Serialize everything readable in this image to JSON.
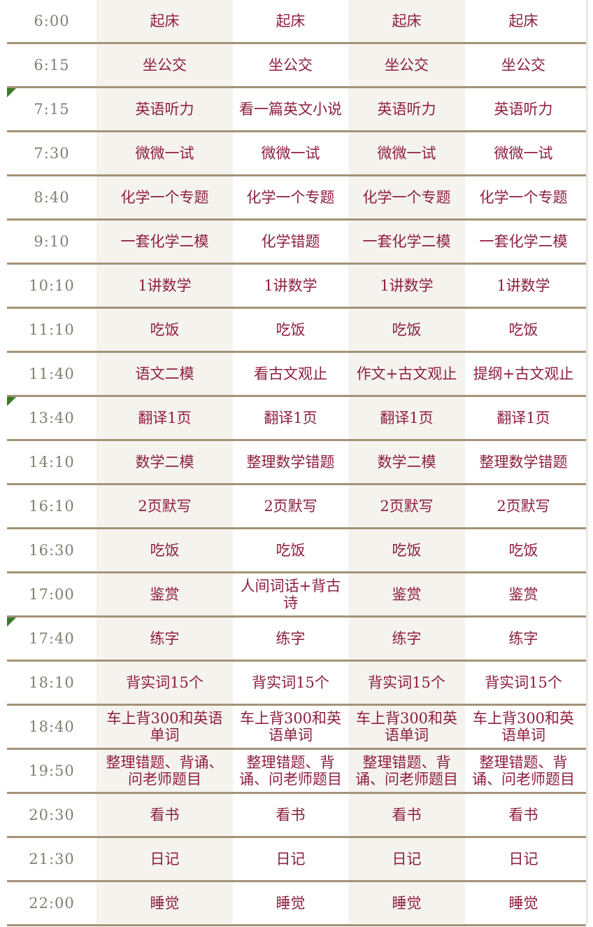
{
  "rows": [
    {
      "time": "6:00",
      "cells": [
        "起床",
        "起床",
        "起床",
        "起床"
      ],
      "flag": false
    },
    {
      "time": "6:15",
      "cells": [
        "坐公交",
        "坐公交",
        "坐公交",
        "坐公交"
      ],
      "flag": false
    },
    {
      "time": "7:15",
      "cells": [
        "英语听力",
        "看一篇英文小说",
        "英语听力",
        "英语听力"
      ],
      "flag": true
    },
    {
      "time": "7:30",
      "cells": [
        "微微一试",
        "微微一试",
        "微微一试",
        "微微一试"
      ],
      "flag": false
    },
    {
      "time": "8:40",
      "cells": [
        "化学一个专题",
        "化学一个专题",
        "化学一个专题",
        "化学一个专题"
      ],
      "flag": false
    },
    {
      "time": "9:10",
      "cells": [
        "一套化学二模",
        "化学错题",
        "一套化学二模",
        "一套化学二模"
      ],
      "flag": false
    },
    {
      "time": "10:10",
      "cells": [
        "1讲数学",
        "1讲数学",
        "1讲数学",
        "1讲数学"
      ],
      "flag": false
    },
    {
      "time": "11:10",
      "cells": [
        "吃饭",
        "吃饭",
        "吃饭",
        "吃饭"
      ],
      "flag": false
    },
    {
      "time": "11:40",
      "cells": [
        "语文二模",
        "看古文观止",
        "作文+古文观止",
        "提纲+古文观止"
      ],
      "flag": false
    },
    {
      "time": "13:40",
      "cells": [
        "翻译1页",
        "翻译1页",
        "翻译1页",
        "翻译1页"
      ],
      "flag": true
    },
    {
      "time": "14:10",
      "cells": [
        "数学二模",
        "整理数学错题",
        "数学二模",
        "整理数学错题"
      ],
      "flag": false
    },
    {
      "time": "16:10",
      "cells": [
        "2页默写",
        "2页默写",
        "2页默写",
        "2页默写"
      ],
      "flag": false
    },
    {
      "time": "16:30",
      "cells": [
        "吃饭",
        "吃饭",
        "吃饭",
        "吃饭"
      ],
      "flag": false
    },
    {
      "time": "17:00",
      "cells": [
        "鉴赏",
        "人间词话+背古诗",
        "鉴赏",
        "鉴赏"
      ],
      "flag": false
    },
    {
      "time": "17:40",
      "cells": [
        "练字",
        "练字",
        "练字",
        "练字"
      ],
      "flag": true
    },
    {
      "time": "18:10",
      "cells": [
        "背实词15个",
        "背实词15个",
        "背实词15个",
        "背实词15个"
      ],
      "flag": false
    },
    {
      "time": "18:40",
      "cells": [
        "车上背300和英语单词",
        "车上背300和英语单词",
        "车上背300和英语单词",
        "车上背300和英语单词"
      ],
      "flag": false
    },
    {
      "time": "19:50",
      "cells": [
        "整理错题、背诵、问老师题目",
        "整理错题、背诵、问老师题目",
        "整理错题、背诵、问老师题目",
        "整理错题、背诵、问老师题目"
      ],
      "flag": false
    },
    {
      "time": "20:30",
      "cells": [
        "看书",
        "看书",
        "看书",
        "看书"
      ],
      "flag": false
    },
    {
      "time": "21:30",
      "cells": [
        "日记",
        "日记",
        "日记",
        "日记"
      ],
      "flag": false
    },
    {
      "time": "22:00",
      "cells": [
        "睡觉",
        "睡觉",
        "睡觉",
        "睡觉"
      ],
      "flag": false
    }
  ],
  "colors": {
    "text": "#8e1f3e",
    "time_text": "#7f7f74",
    "rule": "#a39378",
    "shade": "#f5f3ee",
    "flag": "#3a7a28"
  }
}
